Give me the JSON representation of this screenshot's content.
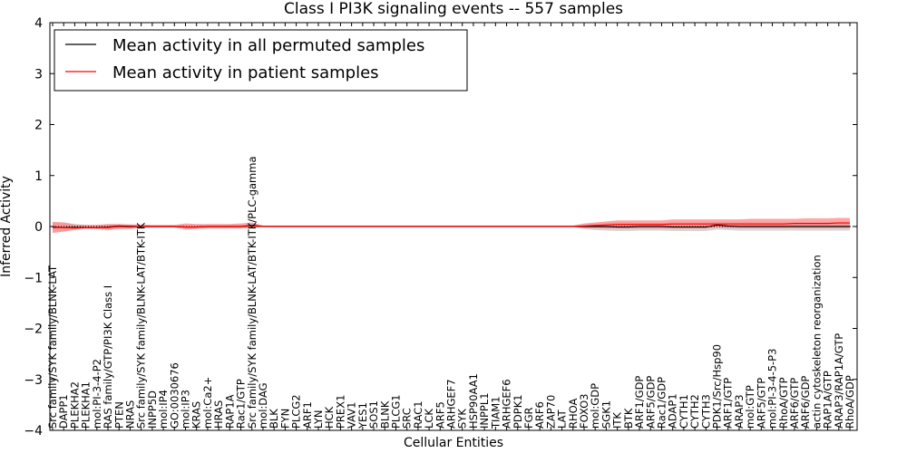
{
  "chart_data": {
    "type": "line",
    "title": "Class I PI3K signaling events -- 557 samples",
    "xlabel": "Cellular Entities",
    "ylabel": "Inferred Activity",
    "ylim": [
      -4,
      4
    ],
    "yticks": [
      -4,
      -3,
      -2,
      -1,
      0,
      1,
      2,
      3,
      4
    ],
    "ytick_labels": [
      "−4",
      "−3",
      "−2",
      "−1",
      "0",
      "1",
      "2",
      "3",
      "4"
    ],
    "grid": false,
    "legend_position": "upper-left",
    "categories": [
      "Src family/SYK family/BLNK-LAT",
      "DAPP1",
      "PLEKHA2",
      "PLEKHA1",
      "mol:PI-3-4-P2",
      "RAS family/GTP/PI3K Class I",
      "PTEN",
      "NRAS",
      "Src family/SYK family/BLNK-LAT/BTK-ITK",
      "INPP5D",
      "mol:IP4",
      "GO:0030676",
      "mol:IP3",
      "KRAS",
      "mol:Ca2+",
      "HRAS",
      "RAP1A",
      "Rac1/GTP",
      "Src family/SYK family/BLNK-LAT/BTK-ITK/PLC-gamma",
      "mol:DAG",
      "BLK",
      "FYN",
      "PLCG2",
      "ARF1",
      "LYN",
      "HCK",
      "PREX1",
      "VAV1",
      "YES1",
      "SOS1",
      "BLNK",
      "PLCG1",
      "SRC",
      "RAC1",
      "LCK",
      "ARF5",
      "ARHGEF7",
      "SYK",
      "HSP90AA1",
      "INPPL1",
      "TIAM1",
      "ARHGEF6",
      "PDPK1",
      "FGR",
      "ARF6",
      "ZAP70",
      "LAT",
      "RHOA",
      "FOXO3",
      "mol:GDP",
      "SGK1",
      "ITK",
      "BTK",
      "ARF1/GDP",
      "ARF5/GDP",
      "Rac1/GDP",
      "ADAP1",
      "CYTH1",
      "CYTH2",
      "CYTH3",
      "PDK1/Src/Hsp90",
      "ARF1/GTP",
      "ARAP3",
      "mol:GTP",
      "ARF5/GTP",
      "mol:PI-3-4-5-P3",
      "RhoA/GTP",
      "ARF6/GTP",
      "ARF6/GDP",
      "actin cytoskeleton reorganization",
      "RAP1A/GTP",
      "ARAP3/RAP1A/GTP",
      "RhoA/GDP"
    ],
    "series": [
      {
        "name": "Mean activity in all permuted samples",
        "color": "#000000",
        "values": [
          -0.01,
          -0.02,
          -0.02,
          -0.02,
          -0.02,
          -0.01,
          0.01,
          0.0,
          0.0,
          0.0,
          0.0,
          0.0,
          -0.01,
          -0.01,
          0.0,
          0.0,
          0.0,
          0.0,
          0.02,
          0.0,
          0.0,
          0.0,
          0.0,
          0.0,
          0.0,
          0.0,
          0.0,
          0.0,
          0.0,
          0.0,
          0.0,
          0.0,
          0.0,
          0.0,
          0.0,
          0.0,
          0.0,
          0.0,
          0.0,
          0.0,
          0.0,
          0.0,
          0.0,
          0.0,
          0.0,
          0.0,
          0.0,
          0.0,
          0.0,
          0.0,
          0.0,
          -0.01,
          -0.01,
          0.0,
          0.0,
          0.0,
          -0.01,
          -0.01,
          -0.01,
          -0.01,
          0.03,
          0.01,
          0.0,
          0.0,
          0.0,
          0.0,
          0.0,
          0.0,
          0.0,
          0.0,
          0.0,
          0.0,
          0.0
        ],
        "band": {
          "color": "#c8c8c8",
          "lower": [
            -0.1,
            -0.1,
            -0.07,
            -0.05,
            -0.05,
            -0.05,
            -0.04,
            -0.04,
            -0.03,
            -0.02,
            -0.02,
            -0.02,
            -0.04,
            -0.04,
            -0.03,
            -0.03,
            -0.03,
            -0.03,
            -0.03,
            -0.01,
            -0.01,
            -0.01,
            -0.01,
            -0.01,
            -0.01,
            -0.01,
            -0.01,
            -0.01,
            -0.01,
            -0.01,
            -0.01,
            -0.01,
            -0.01,
            -0.01,
            -0.01,
            -0.01,
            -0.01,
            -0.01,
            -0.01,
            -0.01,
            -0.01,
            -0.01,
            -0.01,
            -0.01,
            -0.01,
            -0.01,
            -0.01,
            -0.01,
            -0.05,
            -0.07,
            -0.08,
            -0.09,
            -0.09,
            -0.08,
            -0.08,
            -0.08,
            -0.09,
            -0.09,
            -0.09,
            -0.09,
            -0.06,
            -0.07,
            -0.08,
            -0.08,
            -0.08,
            -0.08,
            -0.08,
            -0.08,
            -0.08,
            -0.08,
            -0.08,
            -0.08,
            -0.08
          ],
          "upper": [
            0.08,
            0.08,
            0.05,
            0.03,
            0.03,
            0.04,
            0.05,
            0.04,
            0.03,
            0.02,
            0.02,
            0.02,
            0.03,
            0.03,
            0.03,
            0.03,
            0.03,
            0.03,
            0.05,
            0.01,
            0.01,
            0.01,
            0.01,
            0.01,
            0.01,
            0.01,
            0.01,
            0.01,
            0.01,
            0.01,
            0.01,
            0.01,
            0.01,
            0.01,
            0.01,
            0.01,
            0.01,
            0.01,
            0.01,
            0.01,
            0.01,
            0.01,
            0.01,
            0.01,
            0.01,
            0.01,
            0.01,
            0.01,
            0.04,
            0.06,
            0.07,
            0.08,
            0.08,
            0.07,
            0.07,
            0.07,
            0.08,
            0.08,
            0.08,
            0.08,
            0.09,
            0.08,
            0.08,
            0.08,
            0.08,
            0.08,
            0.08,
            0.08,
            0.08,
            0.08,
            0.08,
            0.08,
            0.08
          ]
        }
      },
      {
        "name": "Mean activity in patient samples",
        "color": "#ff0000",
        "values": [
          -0.02,
          -0.02,
          -0.03,
          -0.02,
          -0.02,
          -0.02,
          0.0,
          -0.01,
          0.0,
          0.0,
          0.0,
          0.0,
          -0.01,
          -0.01,
          0.0,
          0.0,
          0.0,
          0.0,
          0.01,
          0.0,
          0.0,
          0.0,
          0.0,
          0.0,
          0.0,
          0.0,
          0.0,
          0.0,
          0.0,
          0.0,
          0.0,
          0.0,
          0.0,
          0.0,
          0.0,
          0.0,
          0.0,
          0.0,
          0.0,
          0.0,
          0.0,
          0.0,
          0.0,
          0.0,
          0.0,
          0.0,
          0.0,
          0.0,
          0.01,
          0.02,
          0.03,
          0.04,
          0.04,
          0.04,
          0.04,
          0.04,
          0.05,
          0.05,
          0.05,
          0.05,
          0.05,
          0.05,
          0.05,
          0.05,
          0.05,
          0.05,
          0.05,
          0.06,
          0.06,
          0.06,
          0.06,
          0.07,
          0.07
        ],
        "band": {
          "color": "#ff8080",
          "lower": [
            -0.13,
            -0.1,
            -0.06,
            -0.04,
            -0.05,
            -0.07,
            -0.05,
            -0.05,
            -0.02,
            -0.02,
            -0.02,
            -0.02,
            -0.06,
            -0.05,
            -0.04,
            -0.04,
            -0.04,
            -0.04,
            -0.02,
            -0.01,
            -0.01,
            -0.01,
            -0.01,
            -0.01,
            -0.01,
            -0.01,
            -0.01,
            -0.01,
            -0.01,
            -0.01,
            -0.01,
            -0.01,
            -0.01,
            -0.01,
            -0.01,
            -0.01,
            -0.01,
            -0.01,
            -0.01,
            -0.01,
            -0.01,
            -0.01,
            -0.01,
            -0.01,
            -0.01,
            -0.01,
            -0.01,
            -0.01,
            -0.03,
            -0.03,
            -0.04,
            -0.04,
            -0.04,
            -0.04,
            -0.04,
            -0.04,
            -0.04,
            -0.04,
            -0.04,
            -0.04,
            -0.02,
            -0.03,
            -0.03,
            -0.03,
            -0.03,
            -0.03,
            -0.03,
            -0.03,
            -0.03,
            -0.03,
            -0.03,
            -0.03,
            -0.03
          ],
          "upper": [
            0.09,
            0.08,
            0.04,
            0.03,
            0.03,
            0.05,
            0.05,
            0.04,
            0.04,
            0.03,
            0.03,
            0.03,
            0.06,
            0.05,
            0.05,
            0.05,
            0.05,
            0.06,
            0.08,
            0.02,
            0.02,
            0.02,
            0.02,
            0.02,
            0.02,
            0.02,
            0.02,
            0.02,
            0.02,
            0.02,
            0.02,
            0.02,
            0.02,
            0.02,
            0.02,
            0.02,
            0.02,
            0.02,
            0.02,
            0.02,
            0.02,
            0.02,
            0.02,
            0.02,
            0.02,
            0.02,
            0.02,
            0.02,
            0.06,
            0.08,
            0.1,
            0.12,
            0.12,
            0.12,
            0.12,
            0.12,
            0.14,
            0.14,
            0.14,
            0.14,
            0.14,
            0.14,
            0.14,
            0.15,
            0.15,
            0.15,
            0.15,
            0.15,
            0.16,
            0.16,
            0.16,
            0.17,
            0.17
          ]
        }
      }
    ]
  }
}
